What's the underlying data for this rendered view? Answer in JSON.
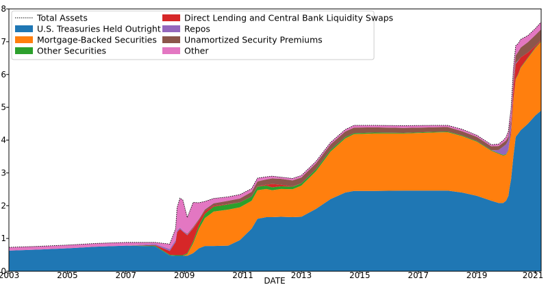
{
  "chart_data": {
    "type": "area",
    "xlabel": "DATE",
    "xlim": [
      2003.0,
      2021.2
    ],
    "ylim": [
      0,
      8
    ],
    "x_ticks": [
      "2003",
      "2005",
      "2007",
      "2009",
      "2011",
      "2013",
      "2015",
      "2017",
      "2019",
      "2021"
    ],
    "y_ticks": [
      "0",
      "1",
      "2",
      "3",
      "4",
      "5",
      "6",
      "7",
      "8"
    ],
    "grid": false,
    "legend": "top-left, two columns",
    "x": [
      2003.0,
      2004.0,
      2005.0,
      2006.0,
      2007.0,
      2008.0,
      2008.5,
      2008.7,
      2008.75,
      2008.85,
      2008.95,
      2009.1,
      2009.3,
      2009.5,
      2009.7,
      2010.0,
      2010.5,
      2010.9,
      2011.3,
      2011.5,
      2011.8,
      2012.0,
      2012.3,
      2012.7,
      2013.0,
      2013.5,
      2014.0,
      2014.5,
      2014.8,
      2015.5,
      2016.5,
      2017.5,
      2018.0,
      2018.5,
      2019.0,
      2019.5,
      2019.75,
      2019.9,
      2020.0,
      2020.08,
      2020.12,
      2020.17,
      2020.25,
      2020.33,
      2020.42,
      2020.5,
      2020.75,
      2021.0,
      2021.2
    ],
    "series": [
      {
        "name": "U.S. Treasuries Held Outright",
        "color": "#1f77b4",
        "values": [
          0.63,
          0.66,
          0.7,
          0.75,
          0.78,
          0.76,
          0.48,
          0.47,
          0.47,
          0.47,
          0.47,
          0.47,
          0.55,
          0.7,
          0.77,
          0.77,
          0.78,
          0.95,
          1.3,
          1.6,
          1.65,
          1.65,
          1.66,
          1.65,
          1.66,
          1.9,
          2.2,
          2.4,
          2.45,
          2.45,
          2.46,
          2.46,
          2.46,
          2.4,
          2.3,
          2.15,
          2.08,
          2.08,
          2.15,
          2.3,
          2.55,
          2.8,
          3.5,
          4.1,
          4.2,
          4.3,
          4.5,
          4.75,
          4.9
        ]
      },
      {
        "name": "Mortgage-Backed Securities",
        "color": "#ff7f0e",
        "values": [
          0.0,
          0.0,
          0.0,
          0.0,
          0.0,
          0.0,
          0.0,
          0.0,
          0.0,
          0.0,
          0.0,
          0.05,
          0.3,
          0.6,
          0.85,
          1.05,
          1.1,
          1.0,
          0.85,
          0.87,
          0.86,
          0.82,
          0.85,
          0.85,
          0.95,
          1.15,
          1.45,
          1.65,
          1.73,
          1.75,
          1.74,
          1.77,
          1.78,
          1.72,
          1.65,
          1.52,
          1.5,
          1.45,
          1.4,
          1.38,
          1.37,
          1.35,
          1.7,
          1.75,
          1.8,
          1.9,
          2.0,
          2.05,
          2.1
        ]
      },
      {
        "name": "Other Securities",
        "color": "#2ca02c",
        "values": [
          0.0,
          0.0,
          0.0,
          0.0,
          0.0,
          0.02,
          0.02,
          0.02,
          0.02,
          0.02,
          0.02,
          0.03,
          0.06,
          0.1,
          0.13,
          0.15,
          0.16,
          0.15,
          0.13,
          0.11,
          0.1,
          0.09,
          0.08,
          0.08,
          0.07,
          0.06,
          0.05,
          0.04,
          0.03,
          0.03,
          0.02,
          0.02,
          0.02,
          0.02,
          0.02,
          0.02,
          0.02,
          0.02,
          0.02,
          0.02,
          0.02,
          0.02,
          0.02,
          0.02,
          0.02,
          0.02,
          0.02,
          0.02,
          0.02
        ]
      },
      {
        "name": "Direct Lending and Central Bank Liquidity Swaps",
        "color": "#d62728",
        "values": [
          0.0,
          0.0,
          0.0,
          0.0,
          0.0,
          0.02,
          0.12,
          0.4,
          0.7,
          0.8,
          0.72,
          0.55,
          0.4,
          0.15,
          0.08,
          0.03,
          0.01,
          0.0,
          0.0,
          0.01,
          0.03,
          0.1,
          0.05,
          0.01,
          0.0,
          0.0,
          0.0,
          0.0,
          0.0,
          0.0,
          0.0,
          0.0,
          0.0,
          0.0,
          0.0,
          0.0,
          0.0,
          0.0,
          0.0,
          0.02,
          0.05,
          0.15,
          0.35,
          0.45,
          0.4,
          0.3,
          0.15,
          0.05,
          0.03
        ]
      },
      {
        "name": "Repos",
        "color": "#9467bd",
        "values": [
          0.0,
          0.0,
          0.0,
          0.0,
          0.0,
          0.03,
          0.06,
          0.06,
          0.05,
          0.04,
          0.03,
          0.02,
          0.01,
          0.0,
          0.0,
          0.0,
          0.0,
          0.0,
          0.0,
          0.0,
          0.0,
          0.0,
          0.0,
          0.0,
          0.0,
          0.0,
          0.0,
          0.0,
          0.0,
          0.0,
          0.0,
          0.0,
          0.0,
          0.0,
          0.0,
          0.0,
          0.1,
          0.25,
          0.3,
          0.28,
          0.3,
          0.2,
          0.12,
          0.04,
          0.01,
          0.0,
          0.0,
          0.0,
          0.0
        ]
      },
      {
        "name": "Unamortized Security Premiums",
        "color": "#8c564b",
        "values": [
          0.0,
          0.0,
          0.0,
          0.0,
          0.0,
          0.0,
          0.0,
          0.0,
          0.0,
          0.0,
          0.0,
          0.02,
          0.03,
          0.04,
          0.05,
          0.07,
          0.1,
          0.12,
          0.14,
          0.15,
          0.16,
          0.17,
          0.18,
          0.18,
          0.18,
          0.18,
          0.17,
          0.17,
          0.17,
          0.16,
          0.15,
          0.14,
          0.14,
          0.13,
          0.13,
          0.12,
          0.12,
          0.12,
          0.12,
          0.12,
          0.12,
          0.13,
          0.18,
          0.22,
          0.27,
          0.3,
          0.32,
          0.33,
          0.33
        ]
      },
      {
        "name": "Other",
        "color": "#e377c2",
        "values": [
          0.1,
          0.1,
          0.1,
          0.1,
          0.1,
          0.05,
          0.15,
          0.35,
          0.7,
          0.9,
          0.93,
          0.5,
          0.75,
          0.5,
          0.25,
          0.15,
          0.12,
          0.12,
          0.1,
          0.1,
          0.08,
          0.07,
          0.05,
          0.06,
          0.06,
          0.06,
          0.06,
          0.06,
          0.07,
          0.06,
          0.07,
          0.06,
          0.05,
          0.06,
          0.05,
          0.05,
          0.06,
          0.07,
          0.1,
          0.15,
          0.2,
          0.3,
          0.3,
          0.3,
          0.25,
          0.25,
          0.2,
          0.2,
          0.22
        ]
      }
    ],
    "total_assets": {
      "name": "Total Assets",
      "style": "dotted",
      "color": "#000000"
    }
  }
}
